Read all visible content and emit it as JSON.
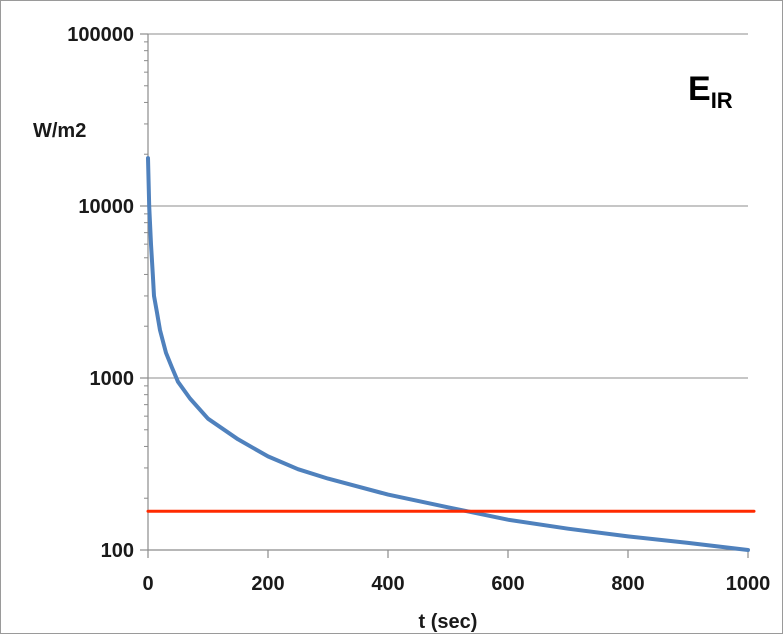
{
  "chart_data": {
    "type": "line",
    "title_main": "E",
    "title_sub": "IR",
    "xlabel": "t (sec)",
    "ylabel": "W/m2",
    "xlim": [
      0,
      1000
    ],
    "ylim": [
      100,
      100000
    ],
    "yscale": "log",
    "grid": "horizontal",
    "x_ticks": [
      0,
      200,
      400,
      600,
      800,
      1000
    ],
    "x_tick_labels": [
      "0",
      "200",
      "400",
      "600",
      "800",
      "1000"
    ],
    "y_ticks": [
      100,
      1000,
      10000,
      100000
    ],
    "y_tick_labels": [
      "100",
      "1000",
      "10000",
      "100000"
    ],
    "series": [
      {
        "color": "#4f81bd",
        "x": [
          0,
          2,
          5,
          8,
          10,
          15,
          20,
          30,
          40,
          50,
          70,
          100,
          150,
          200,
          250,
          300,
          400,
          500,
          600,
          700,
          800,
          900,
          1000
        ],
        "y": [
          19000,
          10000,
          6000,
          4000,
          3000,
          2400,
          1900,
          1400,
          1150,
          950,
          760,
          580,
          440,
          350,
          295,
          260,
          210,
          177,
          150,
          133,
          120,
          110,
          100
        ]
      },
      {
        "color": "#ff2a00",
        "x": [
          0,
          1010
        ],
        "y": [
          168,
          168
        ]
      }
    ]
  }
}
